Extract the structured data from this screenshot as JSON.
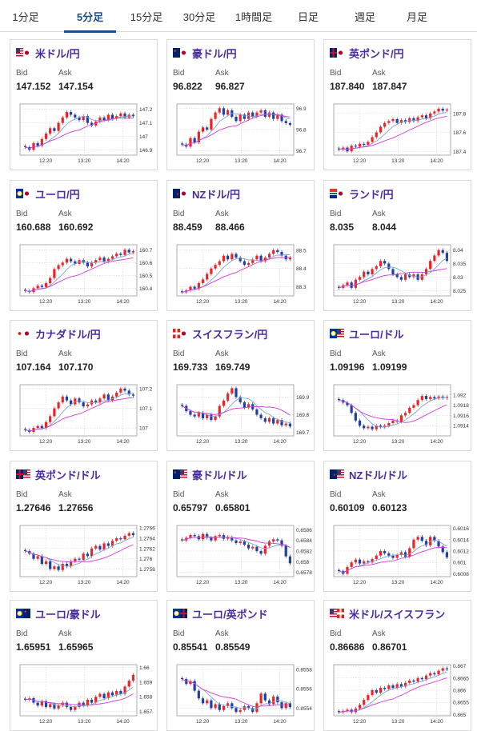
{
  "tabs": [
    {
      "label": "1分足",
      "active": false
    },
    {
      "label": "5分足",
      "active": true
    },
    {
      "label": "15分足",
      "active": false
    },
    {
      "label": "30分足",
      "active": false
    },
    {
      "label": "1時間足",
      "active": false
    },
    {
      "label": "日足",
      "active": false
    },
    {
      "label": "週足",
      "active": false
    },
    {
      "label": "月足",
      "active": false
    }
  ],
  "labels": {
    "bid": "Bid",
    "ask": "Ask"
  },
  "colors": {
    "accent": "#1a4e8a",
    "pair_name": "#4a2aa0",
    "candle_up": "#e8262a",
    "candle_down": "#1f3fa5",
    "ma_short": "#7ea3d4",
    "ma_long": "#d23ad8"
  },
  "cards": [
    {
      "name": "米ドル/円",
      "flags": [
        "us",
        "jp"
      ],
      "bid": "147.152",
      "ask": "147.154",
      "chart_data": {
        "type": "candlestick",
        "x_ticks": [
          "12:20",
          "13:20",
          "14:20"
        ],
        "y_ticks": [
          "147.2",
          "147.1",
          "147",
          "146.9"
        ],
        "ylim": [
          146.86,
          147.24
        ],
        "close": [
          146.92,
          146.9,
          146.95,
          146.93,
          146.98,
          147.02,
          147.06,
          147.04,
          147.1,
          147.14,
          147.18,
          147.16,
          147.14,
          147.12,
          147.15,
          147.1,
          147.08,
          147.11,
          147.14,
          147.12,
          147.16,
          147.13,
          147.15,
          147.17,
          147.14,
          147.16,
          147.15
        ]
      }
    },
    {
      "name": "豪ドル/円",
      "flags": [
        "au",
        "jp"
      ],
      "bid": "96.822",
      "ask": "96.827",
      "chart_data": {
        "type": "candlestick",
        "x_ticks": [
          "12:20",
          "13:20",
          "14:20"
        ],
        "y_ticks": [
          "96.9",
          "96.8",
          "96.7"
        ],
        "ylim": [
          96.68,
          96.92
        ],
        "close": [
          96.73,
          96.72,
          96.76,
          96.74,
          96.79,
          96.81,
          96.8,
          96.85,
          96.88,
          96.9,
          96.87,
          96.89,
          96.86,
          96.84,
          96.87,
          96.85,
          96.88,
          96.86,
          96.88,
          96.89,
          96.86,
          96.88,
          96.85,
          96.87,
          96.84,
          96.83,
          96.822
        ]
      }
    },
    {
      "name": "英ポンド/円",
      "flags": [
        "gb",
        "jp"
      ],
      "bid": "187.840",
      "ask": "187.847",
      "chart_data": {
        "type": "candlestick",
        "x_ticks": [
          "12:20",
          "13:20",
          "14:20"
        ],
        "y_ticks": [
          "187.8",
          "187.6",
          "187.4"
        ],
        "ylim": [
          187.36,
          187.9
        ],
        "close": [
          187.42,
          187.44,
          187.4,
          187.46,
          187.45,
          187.48,
          187.47,
          187.5,
          187.55,
          187.6,
          187.66,
          187.7,
          187.72,
          187.74,
          187.7,
          187.73,
          187.71,
          187.75,
          187.72,
          187.76,
          187.78,
          187.75,
          187.8,
          187.82,
          187.85,
          187.83,
          187.84
        ]
      }
    },
    {
      "name": "ユーロ/円",
      "flags": [
        "eu",
        "jp"
      ],
      "bid": "160.688",
      "ask": "160.692",
      "chart_data": {
        "type": "candlestick",
        "x_ticks": [
          "12:20",
          "13:20",
          "14:20"
        ],
        "y_ticks": [
          "160.7",
          "160.6",
          "160.5",
          "160.4"
        ],
        "ylim": [
          160.34,
          160.74
        ],
        "close": [
          160.38,
          160.37,
          160.4,
          160.42,
          160.41,
          160.44,
          160.48,
          160.55,
          160.58,
          160.6,
          160.63,
          160.61,
          160.59,
          160.62,
          160.6,
          160.57,
          160.6,
          160.62,
          160.64,
          160.61,
          160.63,
          160.65,
          160.67,
          160.66,
          160.7,
          160.68,
          160.69
        ]
      }
    },
    {
      "name": "NZドル/円",
      "flags": [
        "nz",
        "jp"
      ],
      "bid": "88.459",
      "ask": "88.466",
      "chart_data": {
        "type": "candlestick",
        "x_ticks": [
          "12:20",
          "13:20",
          "14:20"
        ],
        "y_ticks": [
          "88.5",
          "88.4",
          "88.3"
        ],
        "ylim": [
          88.25,
          88.53
        ],
        "close": [
          88.27,
          88.28,
          88.3,
          88.29,
          88.32,
          88.34,
          88.37,
          88.4,
          88.42,
          88.44,
          88.47,
          88.45,
          88.48,
          88.46,
          88.44,
          88.42,
          88.43,
          88.45,
          88.47,
          88.44,
          88.46,
          88.48,
          88.5,
          88.49,
          88.47,
          88.45,
          88.46
        ]
      }
    },
    {
      "name": "ランド/円",
      "flags": [
        "za",
        "jp"
      ],
      "bid": "8.035",
      "ask": "8.044",
      "chart_data": {
        "type": "candlestick",
        "x_ticks": [
          "12:20",
          "13:20",
          "14:20"
        ],
        "y_ticks": [
          "8.04",
          "8.035",
          "8.03",
          "8.025"
        ],
        "ylim": [
          8.023,
          8.042
        ],
        "close": [
          8.026,
          8.027,
          8.028,
          8.026,
          8.029,
          8.03,
          8.032,
          8.031,
          8.033,
          8.034,
          8.036,
          8.035,
          8.033,
          8.031,
          8.03,
          8.029,
          8.031,
          8.03,
          8.031,
          8.029,
          8.031,
          8.033,
          8.036,
          8.038,
          8.04,
          8.039,
          8.036
        ]
      }
    },
    {
      "name": "カナダドル/円",
      "flags": [
        "ca",
        "jp"
      ],
      "bid": "107.164",
      "ask": "107.170",
      "chart_data": {
        "type": "candlestick",
        "x_ticks": [
          "12:20",
          "13:20",
          "14:20"
        ],
        "y_ticks": [
          "107.2",
          "107.1",
          "107"
        ],
        "ylim": [
          106.96,
          107.22
        ],
        "close": [
          106.99,
          106.98,
          107.0,
          107.01,
          107.0,
          107.03,
          107.06,
          107.1,
          107.13,
          107.16,
          107.14,
          107.12,
          107.15,
          107.13,
          107.11,
          107.12,
          107.14,
          107.13,
          107.15,
          107.17,
          107.14,
          107.16,
          107.18,
          107.2,
          107.19,
          107.17,
          107.164
        ]
      }
    },
    {
      "name": "スイスフラン/円",
      "flags": [
        "ch",
        "jp"
      ],
      "bid": "169.733",
      "ask": "169.749",
      "chart_data": {
        "type": "candlestick",
        "x_ticks": [
          "12:20",
          "13:20",
          "14:20"
        ],
        "y_ticks": [
          "169.9",
          "169.8",
          "169.7"
        ],
        "ylim": [
          169.68,
          169.97
        ],
        "close": [
          169.85,
          169.82,
          169.8,
          169.79,
          169.81,
          169.78,
          169.8,
          169.77,
          169.79,
          169.85,
          169.88,
          169.92,
          169.95,
          169.9,
          169.87,
          169.84,
          169.86,
          169.83,
          169.8,
          169.78,
          169.76,
          169.78,
          169.75,
          169.77,
          169.74,
          169.75,
          169.733
        ]
      }
    },
    {
      "name": "ユーロ/ドル",
      "flags": [
        "eu",
        "us"
      ],
      "bid": "1.09196",
      "ask": "1.09199",
      "chart_data": {
        "type": "candlestick",
        "x_ticks": [
          "12:20",
          "13:20",
          "14:20"
        ],
        "y_ticks": [
          "1.092",
          "1.0918",
          "1.0916",
          "1.0914"
        ],
        "ylim": [
          1.0912,
          1.0922
        ],
        "close": [
          1.0919,
          1.09185,
          1.0918,
          1.09165,
          1.0915,
          1.0914,
          1.09135,
          1.09138,
          1.09133,
          1.0914,
          1.09137,
          1.0914,
          1.09145,
          1.0915,
          1.09148,
          1.0916,
          1.09165,
          1.09175,
          1.0918,
          1.0919,
          1.09198,
          1.09192,
          1.09196,
          1.09193,
          1.09197,
          1.09194,
          1.09196
        ]
      }
    },
    {
      "name": "英ポンド/ドル",
      "flags": [
        "gb",
        "us"
      ],
      "bid": "1.27646",
      "ask": "1.27656",
      "chart_data": {
        "type": "candlestick",
        "x_ticks": [
          "12:20",
          "13:20",
          "14:20"
        ],
        "y_ticks": [
          "1.2766",
          "1.2764",
          "1.2762",
          "1.276",
          "1.2758"
        ],
        "ylim": [
          1.27565,
          1.27665
        ],
        "close": [
          1.27615,
          1.2761,
          1.276,
          1.27605,
          1.2759,
          1.27595,
          1.2758,
          1.27585,
          1.27578,
          1.2759,
          1.27585,
          1.27595,
          1.276,
          1.27598,
          1.2761,
          1.27605,
          1.2762,
          1.27625,
          1.27618,
          1.2763,
          1.27625,
          1.27635,
          1.2764,
          1.27638,
          1.27645,
          1.2765,
          1.27646
        ]
      }
    },
    {
      "name": "豪ドル/ドル",
      "flags": [
        "au",
        "us"
      ],
      "bid": "0.65797",
      "ask": "0.65801",
      "chart_data": {
        "type": "candlestick",
        "x_ticks": [
          "12:20",
          "13:20",
          "14:20"
        ],
        "y_ticks": [
          "0.6586",
          "0.6584",
          "0.6582",
          "0.658",
          "0.6578"
        ],
        "ylim": [
          0.65772,
          0.65868
        ],
        "close": [
          0.6584,
          0.65845,
          0.6585,
          0.65848,
          0.65842,
          0.65852,
          0.65845,
          0.6584,
          0.65848,
          0.6585,
          0.65843,
          0.65846,
          0.6584,
          0.65835,
          0.65838,
          0.65832,
          0.65825,
          0.65828,
          0.6582,
          0.65815,
          0.6583,
          0.65838,
          0.65842,
          0.6584,
          0.6583,
          0.6581,
          0.65797
        ]
      }
    },
    {
      "name": "NZドル/ドル",
      "flags": [
        "nz",
        "us"
      ],
      "bid": "0.60109",
      "ask": "0.60123",
      "chart_data": {
        "type": "candlestick",
        "x_ticks": [
          "12:20",
          "13:20",
          "14:20"
        ],
        "y_ticks": [
          "0.6016",
          "0.6014",
          "0.6012",
          "0.601",
          "0.6008"
        ],
        "ylim": [
          0.60075,
          0.60165
        ],
        "close": [
          0.60085,
          0.6008,
          0.60092,
          0.601,
          0.60105,
          0.60098,
          0.60102,
          0.601,
          0.60106,
          0.60112,
          0.6012,
          0.60116,
          0.60112,
          0.60108,
          0.60113,
          0.60118,
          0.6011,
          0.60125,
          0.6014,
          0.60145,
          0.60138,
          0.6013,
          0.60145,
          0.60138,
          0.60128,
          0.60118,
          0.60109
        ]
      }
    },
    {
      "name": "ユーロ/豪ドル",
      "flags": [
        "eu",
        "au"
      ],
      "bid": "1.65951",
      "ask": "1.65965",
      "chart_data": {
        "type": "candlestick",
        "x_ticks": [
          "12:20",
          "13:20",
          "14:20"
        ],
        "y_ticks": [
          "1.66",
          "1.659",
          "1.658",
          "1.657"
        ],
        "ylim": [
          1.6567,
          1.6602
        ],
        "close": [
          1.6578,
          1.6579,
          1.6576,
          1.6574,
          1.6577,
          1.6573,
          1.6575,
          1.6572,
          1.6574,
          1.6576,
          1.6573,
          1.6571,
          1.6573,
          1.6576,
          1.6574,
          1.6578,
          1.6576,
          1.658,
          1.6582,
          1.6579,
          1.6583,
          1.6581,
          1.6584,
          1.6582,
          1.6587,
          1.6591,
          1.6595
        ]
      }
    },
    {
      "name": "ユーロ/英ポンド",
      "flags": [
        "eu",
        "gb"
      ],
      "bid": "0.85541",
      "ask": "0.85549",
      "chart_data": {
        "type": "candlestick",
        "x_ticks": [
          "12:20",
          "13:20",
          "14:20"
        ],
        "y_ticks": [
          "0.8558",
          "0.8556",
          "0.8554"
        ],
        "ylim": [
          0.85532,
          0.85585
        ],
        "close": [
          0.8557,
          0.85565,
          0.85568,
          0.85558,
          0.8555,
          0.85545,
          0.85548,
          0.8554,
          0.85544,
          0.85538,
          0.85542,
          0.85545,
          0.8554,
          0.85536,
          0.85538,
          0.85542,
          0.8554,
          0.85536,
          0.85545,
          0.85555,
          0.85548,
          0.85544,
          0.85552,
          0.85546,
          0.8554,
          0.85545,
          0.85541
        ]
      }
    },
    {
      "name": "米ドル/スイスフラン",
      "flags": [
        "us",
        "ch"
      ],
      "bid": "0.86686",
      "ask": "0.86701",
      "chart_data": {
        "type": "candlestick",
        "x_ticks": [
          "12:20",
          "13:20",
          "14:20"
        ],
        "y_ticks": [
          "0.867",
          "0.8665",
          "0.866",
          "0.8655",
          "0.865"
        ],
        "ylim": [
          0.86495,
          0.86705
        ],
        "close": [
          0.8651,
          0.86515,
          0.8652,
          0.8651,
          0.86525,
          0.8654,
          0.8656,
          0.8658,
          0.866,
          0.8659,
          0.8661,
          0.86605,
          0.8662,
          0.8661,
          0.86625,
          0.86615,
          0.8663,
          0.8664,
          0.86635,
          0.8665,
          0.86645,
          0.8666,
          0.8667,
          0.86665,
          0.8668,
          0.8669,
          0.86686
        ]
      }
    }
  ]
}
